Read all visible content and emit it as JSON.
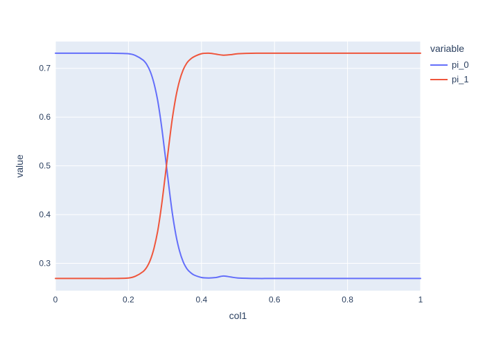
{
  "colors": {
    "paper_bg": "#FFFFFF",
    "plot_bg": "#E5ECF6",
    "grid": "#FFFFFF",
    "text": "#2A3F5F",
    "series_blue": "#636EFA",
    "series_red": "#EF553B"
  },
  "chart_data": {
    "type": "line",
    "title": "",
    "xlabel": "col1",
    "ylabel": "value",
    "legend_title": "variable",
    "legend_position": "right",
    "grid": true,
    "xlim": [
      0,
      1
    ],
    "ylim": [
      0.244,
      0.755
    ],
    "x_ticks": [
      0,
      0.2,
      0.4,
      0.6,
      0.8,
      1
    ],
    "x_tick_labels": [
      "0",
      "0.2",
      "0.4",
      "0.6",
      "0.8",
      "1"
    ],
    "y_ticks": [
      0.3,
      0.4,
      0.5,
      0.6,
      0.7
    ],
    "y_tick_labels": [
      "0.3",
      "0.4",
      "0.5",
      "0.6",
      "0.7"
    ],
    "x": [
      0,
      0.05,
      0.1,
      0.15,
      0.2,
      0.22,
      0.24,
      0.25,
      0.26,
      0.27,
      0.28,
      0.29,
      0.3,
      0.31,
      0.32,
      0.33,
      0.34,
      0.35,
      0.36,
      0.37,
      0.38,
      0.4,
      0.42,
      0.44,
      0.46,
      0.48,
      0.5,
      0.55,
      0.6,
      0.7,
      0.8,
      0.9,
      1.0
    ],
    "series": [
      {
        "name": "pi_0",
        "color": "#636EFA",
        "values": [
          0.731,
          0.731,
          0.731,
          0.731,
          0.73,
          0.726,
          0.717,
          0.708,
          0.693,
          0.669,
          0.634,
          0.585,
          0.525,
          0.462,
          0.404,
          0.358,
          0.325,
          0.303,
          0.289,
          0.281,
          0.276,
          0.271,
          0.27,
          0.271,
          0.274,
          0.272,
          0.27,
          0.269,
          0.269,
          0.269,
          0.269,
          0.269,
          0.269
        ]
      },
      {
        "name": "pi_1",
        "color": "#EF553B",
        "values": [
          0.269,
          0.269,
          0.269,
          0.269,
          0.27,
          0.274,
          0.283,
          0.292,
          0.307,
          0.331,
          0.366,
          0.415,
          0.475,
          0.538,
          0.596,
          0.642,
          0.675,
          0.697,
          0.711,
          0.719,
          0.724,
          0.73,
          0.731,
          0.729,
          0.727,
          0.728,
          0.73,
          0.731,
          0.731,
          0.731,
          0.731,
          0.731,
          0.731
        ]
      }
    ]
  }
}
